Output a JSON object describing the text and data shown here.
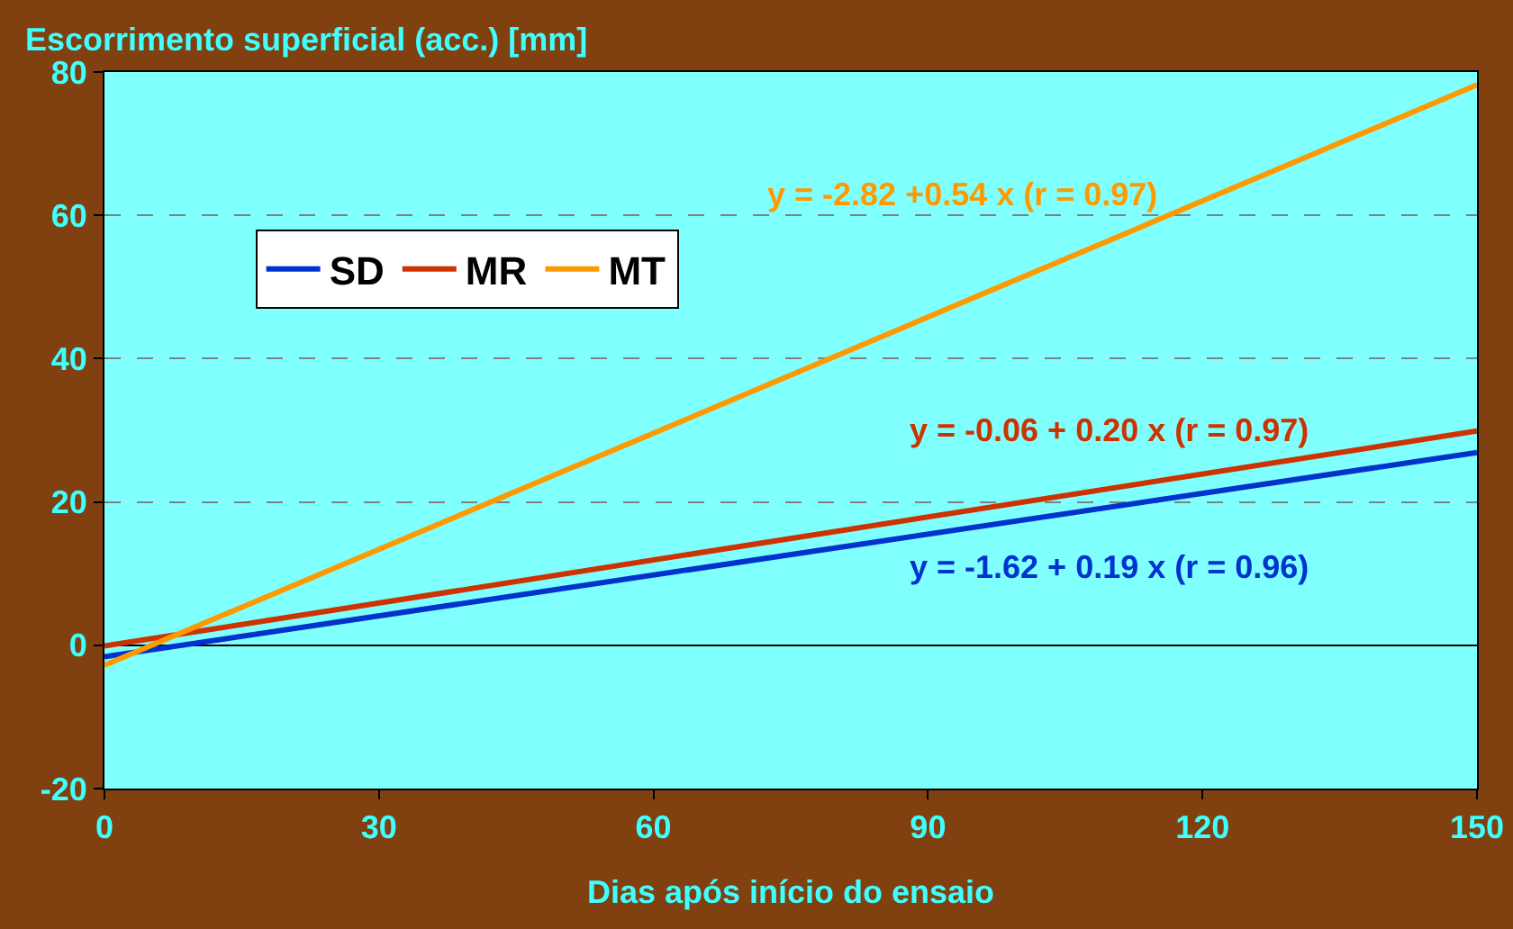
{
  "chart_data": {
    "type": "line",
    "ylabel": "Escorrimento superficial (acc.) [mm]",
    "xlabel": "Dias após início do ensaio",
    "xlim": [
      0,
      150
    ],
    "xticks": [
      0,
      30,
      60,
      90,
      120,
      150
    ],
    "ylim": [
      -20,
      80
    ],
    "yticks": [
      -20,
      0,
      20,
      40,
      60,
      80
    ],
    "grid": "y",
    "legend": "top left",
    "marker": "none",
    "line_style": "solid",
    "x": [
      0,
      150
    ],
    "series": [
      {
        "name": "SD",
        "color": "#0033cc",
        "values": [
          -1.6,
          26.9
        ]
      },
      {
        "name": "MR",
        "color": "#cc3300",
        "values": [
          -0.1,
          29.9
        ]
      },
      {
        "name": "MT",
        "color": "#ff9900",
        "values": [
          -2.8,
          78.2
        ]
      }
    ],
    "annotations": [
      "y = -1.62 + 0.19 x (r = 0.96)",
      "y = -0.06 + 0.20 x (r = 0.97)",
      "y = -2.82 +0.54 x (r = 0.97)"
    ]
  }
}
